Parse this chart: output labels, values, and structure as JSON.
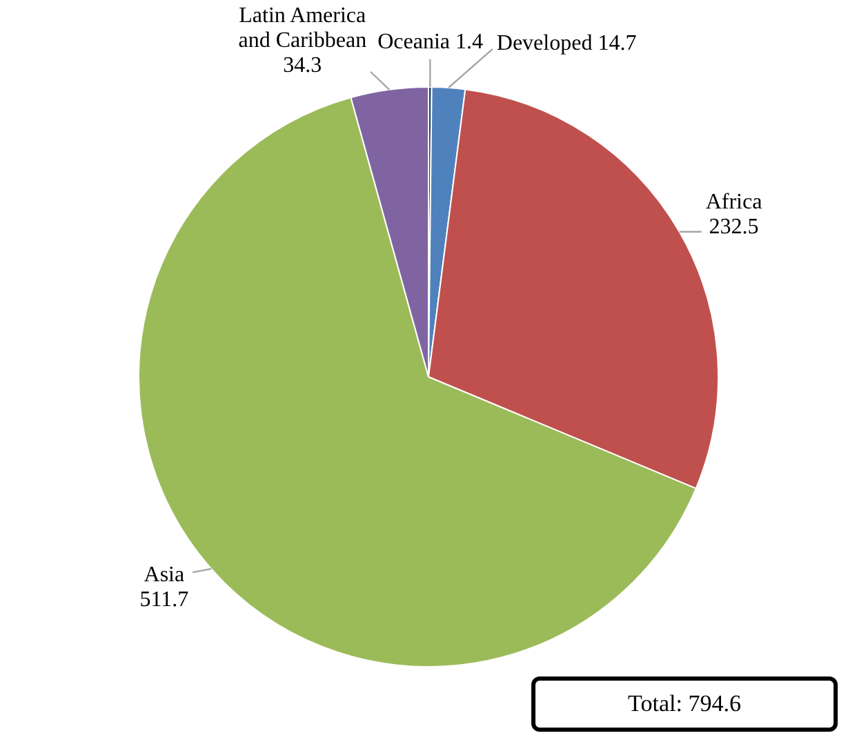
{
  "chart_data": {
    "type": "pie",
    "categories": [
      "Oceania",
      "Developed",
      "Africa",
      "Asia",
      "Latin America and Caribbean"
    ],
    "values": [
      1.4,
      14.7,
      232.5,
      511.7,
      34.3
    ],
    "colors": [
      "#1f3864",
      "#4f81bd",
      "#c0504d",
      "#9bbb59",
      "#8064a2"
    ],
    "data_labels": true,
    "annotations": [
      "Total: 794.6"
    ]
  }
}
